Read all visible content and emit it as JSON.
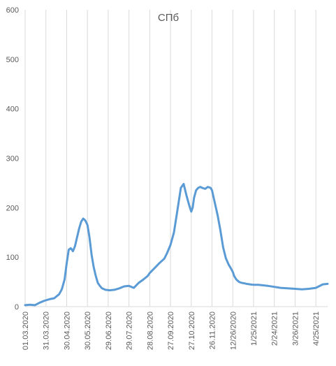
{
  "chart_data": {
    "type": "line",
    "title": "СПб",
    "xlabel": "",
    "ylabel": "",
    "ylim": [
      0,
      600
    ],
    "yticks": [
      0,
      100,
      200,
      300,
      400,
      500,
      600
    ],
    "grid": {
      "vertical": true,
      "horizontal": false
    },
    "legend": "none",
    "colors": {
      "line": "#5b9bd5",
      "grid": "#d9d9d9",
      "text": "#595959"
    },
    "x_tick_labels": [
      "01.03.2020",
      "31.03.2020",
      "30.04.2020",
      "30.05.2020",
      "29.06.2020",
      "29.07.2020",
      "28.08.2020",
      "27.09.2020",
      "27.10.2020",
      "26.11.2020",
      "12/26/2020",
      "1/25/2021",
      "2/24/2021",
      "3/26/2021",
      "4/25/2021"
    ],
    "series": [
      {
        "x": [
          "01.03.2020",
          "08.03.2020",
          "15.03.2020",
          "22.03.2020",
          "29.03.2020",
          "05.04.2020",
          "12.04.2020",
          "19.04.2020",
          "23.04.2020",
          "27.04.2020",
          "30.04.2020",
          "03.05.2020",
          "06.05.2020",
          "09.05.2020",
          "12.05.2020",
          "15.05.2020",
          "18.05.2020",
          "21.05.2020",
          "24.05.2020",
          "27.05.2020",
          "30.05.2020",
          "02.06.2020",
          "05.06.2020",
          "08.06.2020",
          "11.06.2020",
          "14.06.2020",
          "17.06.2020",
          "20.06.2020",
          "25.06.2020",
          "01.07.2020",
          "08.07.2020",
          "15.07.2020",
          "22.07.2020",
          "29.07.2020",
          "05.08.2020",
          "12.08.2020",
          "19.08.2020",
          "25.08.2020",
          "28.08.2020",
          "04.09.2020",
          "11.09.2020",
          "18.09.2020",
          "22.09.2020",
          "27.09.2020",
          "02.10.2020",
          "07.10.2020",
          "12.10.2020",
          "16.10.2020",
          "20.10.2020",
          "24.10.2020",
          "27.10.2020",
          "29.10.2020",
          "31.10.2020",
          "03.11.2020",
          "06.11.2020",
          "09.11.2020",
          "12.11.2020",
          "16.11.2020",
          "20.11.2020",
          "24.11.2020",
          "26.11.2020",
          "30.11.2020",
          "04.12.2020",
          "08.12.2020",
          "12.12.2020",
          "16.12.2020",
          "20.12.2020",
          "23.12.2020",
          "26.12.2020",
          "28.12.2020",
          "31.12.2020",
          "04.01.2021",
          "08.01.2021",
          "12.01.2021",
          "15.01.2021",
          "20.01.2021",
          "25.01.2021",
          "01.02.2021",
          "08.02.2021",
          "15.02.2021",
          "24.02.2021",
          "05.03.2021",
          "15.03.2021",
          "26.03.2021",
          "05.04.2021",
          "15.04.2021",
          "25.04.2021",
          "05.05.2021",
          "12.05.2021"
        ],
        "values": [
          3,
          4,
          3,
          8,
          12,
          15,
          17,
          25,
          35,
          55,
          88,
          115,
          118,
          112,
          122,
          140,
          158,
          172,
          178,
          174,
          165,
          140,
          105,
          80,
          62,
          48,
          42,
          37,
          34,
          33,
          34,
          37,
          41,
          42,
          38,
          48,
          55,
          62,
          68,
          78,
          88,
          97,
          108,
          125,
          150,
          195,
          240,
          248,
          225,
          205,
          192,
          200,
          220,
          235,
          240,
          242,
          240,
          238,
          242,
          240,
          235,
          210,
          185,
          155,
          120,
          98,
          85,
          78,
          70,
          62,
          55,
          50,
          48,
          47,
          46,
          45,
          44,
          44,
          43,
          42,
          40,
          38,
          37,
          36,
          35,
          36,
          38,
          45,
          46
        ]
      }
    ]
  }
}
